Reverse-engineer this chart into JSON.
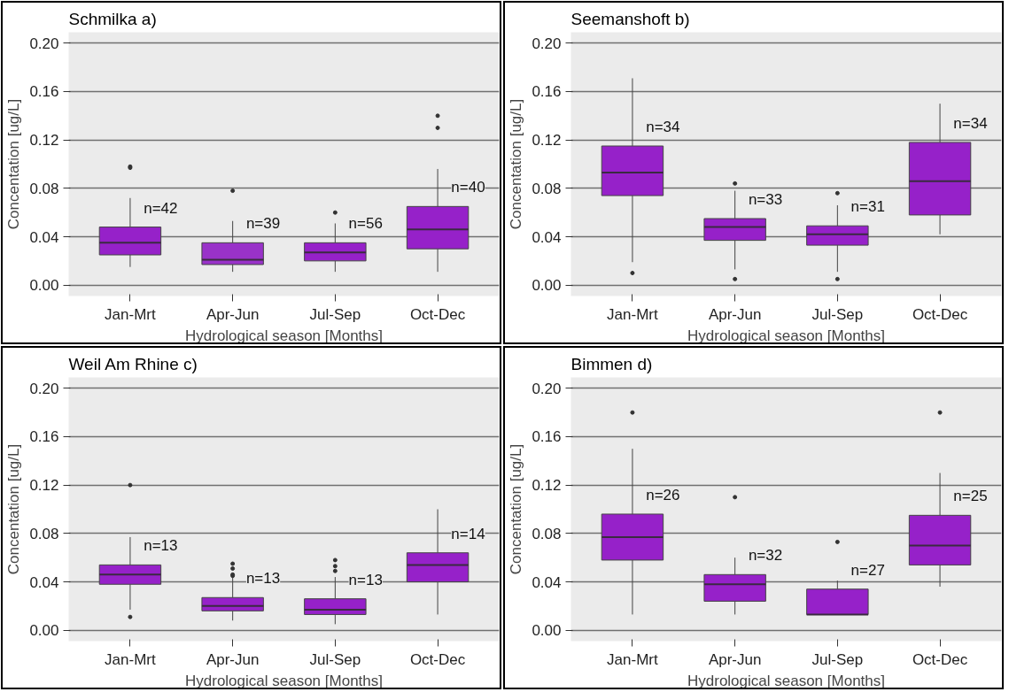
{
  "chart_data": [
    {
      "type": "box",
      "title": "Schmilka   a)",
      "xlabel": "Hydrological season [Months]",
      "ylabel": "Concentation [ug/L]",
      "categories": [
        "Jan-Mrt",
        "Apr-Jun",
        "Jul-Sep",
        "Oct-Dec"
      ],
      "colors": [
        "#9621c9",
        "#9932c9",
        "#9621c9",
        "#9621c9"
      ],
      "boxes": [
        {
          "low": 0.015,
          "q1": 0.025,
          "median": 0.035,
          "q3": 0.048,
          "high": 0.072,
          "outliers": [
            0.097,
            0.098
          ]
        },
        {
          "low": 0.011,
          "q1": 0.017,
          "median": 0.021,
          "q3": 0.035,
          "high": 0.053,
          "outliers": [
            0.078
          ]
        },
        {
          "low": 0.011,
          "q1": 0.02,
          "median": 0.027,
          "q3": 0.035,
          "high": 0.051,
          "outliers": [
            0.06
          ]
        },
        {
          "low": 0.011,
          "q1": 0.03,
          "median": 0.046,
          "q3": 0.065,
          "high": 0.096,
          "outliers": [
            0.13,
            0.14
          ]
        }
      ],
      "annotations": [
        "n=42",
        "n=39",
        "n=56",
        "n=40"
      ],
      "ylim": [
        -0.009,
        0.209
      ],
      "yticks": [
        {
          "value": 0,
          "label": "0.00"
        },
        {
          "value": 0.04,
          "label": "0.04"
        },
        {
          "value": 0.08,
          "label": "0.08"
        },
        {
          "value": 0.12,
          "label": "0.12"
        },
        {
          "value": 0.16,
          "label": "0.16"
        },
        {
          "value": 0.2,
          "label": "0.20"
        }
      ],
      "grid": "y"
    },
    {
      "type": "box",
      "title": "Seemanshoft   b)",
      "xlabel": "Hydrological season [Months]",
      "ylabel": "Concentation [ug/L]",
      "categories": [
        "Jan-Mrt",
        "Apr-Jun",
        "Jul-Sep",
        "Oct-Dec"
      ],
      "colors": [
        "#9621c9",
        "#9621c9",
        "#9621c9",
        "#9621c9"
      ],
      "boxes": [
        {
          "low": 0.019,
          "q1": 0.074,
          "median": 0.093,
          "q3": 0.115,
          "high": 0.171,
          "outliers": [
            0.01
          ]
        },
        {
          "low": 0.013,
          "q1": 0.037,
          "median": 0.048,
          "q3": 0.055,
          "high": 0.078,
          "outliers": [
            0.084,
            0.005
          ]
        },
        {
          "low": 0.011,
          "q1": 0.033,
          "median": 0.042,
          "q3": 0.049,
          "high": 0.066,
          "outliers": [
            0.076,
            0.005
          ]
        },
        {
          "low": 0.042,
          "q1": 0.058,
          "median": 0.086,
          "q3": 0.118,
          "high": 0.15
        }
      ],
      "annotations": [
        "n=34",
        "n=33",
        "n=31",
        "n=34"
      ],
      "ylim": [
        -0.009,
        0.209
      ],
      "yticks": [
        {
          "value": 0,
          "label": "0.00"
        },
        {
          "value": 0.04,
          "label": "0.04"
        },
        {
          "value": 0.08,
          "label": "0.08"
        },
        {
          "value": 0.12,
          "label": "0.12"
        },
        {
          "value": 0.16,
          "label": "0.16"
        },
        {
          "value": 0.2,
          "label": "0.20"
        }
      ],
      "grid": "y"
    },
    {
      "type": "box",
      "title": "Weil Am Rhine   c)",
      "xlabel": "Hydrological season [Months]",
      "ylabel": "Concentation [ug/L]",
      "categories": [
        "Jan-Mrt",
        "Apr-Jun",
        "Jul-Sep",
        "Oct-Dec"
      ],
      "colors": [
        "#9621c9",
        "#9621c9",
        "#9621c9",
        "#9621c9"
      ],
      "boxes": [
        {
          "low": 0.017,
          "q1": 0.038,
          "median": 0.046,
          "q3": 0.054,
          "high": 0.077,
          "outliers": [
            0.12,
            0.011
          ]
        },
        {
          "low": 0.008,
          "q1": 0.016,
          "median": 0.02,
          "q3": 0.027,
          "high": 0.044,
          "outliers": [
            0.045,
            0.046,
            0.051,
            0.055
          ]
        },
        {
          "low": 0.005,
          "q1": 0.013,
          "median": 0.017,
          "q3": 0.026,
          "high": 0.044,
          "outliers": [
            0.049,
            0.053,
            0.058
          ]
        },
        {
          "low": 0.013,
          "q1": 0.04,
          "median": 0.054,
          "q3": 0.064,
          "high": 0.1
        }
      ],
      "annotations": [
        "n=13",
        "n=13",
        "n=13",
        "n=14"
      ],
      "ylim": [
        -0.009,
        0.209
      ],
      "yticks": [
        {
          "value": 0,
          "label": "0.00"
        },
        {
          "value": 0.04,
          "label": "0.04"
        },
        {
          "value": 0.08,
          "label": "0.08"
        },
        {
          "value": 0.12,
          "label": "0.12"
        },
        {
          "value": 0.16,
          "label": "0.16"
        },
        {
          "value": 0.2,
          "label": "0.20"
        }
      ],
      "grid": "y"
    },
    {
      "type": "box",
      "title": "Bimmen   d)",
      "xlabel": "Hydrological season [Months]",
      "ylabel": "Concentation [ug/L]",
      "categories": [
        "Jan-Mrt",
        "Apr-Jun",
        "Jul-Sep",
        "Oct-Dec"
      ],
      "colors": [
        "#9621c9",
        "#9621c9",
        "#9621c9",
        "#9621c9"
      ],
      "boxes": [
        {
          "low": 0.013,
          "q1": 0.058,
          "median": 0.077,
          "q3": 0.096,
          "high": 0.15,
          "outliers": [
            0.18
          ]
        },
        {
          "low": 0.013,
          "q1": 0.024,
          "median": 0.038,
          "q3": 0.046,
          "high": 0.06,
          "outliers": [
            0.11
          ]
        },
        {
          "low": 0.013,
          "q1": 0.013,
          "median": 0.013,
          "q3": 0.034,
          "high": 0.041,
          "outliers": [
            0.073
          ]
        },
        {
          "low": 0.036,
          "q1": 0.054,
          "median": 0.07,
          "q3": 0.095,
          "high": 0.13,
          "outliers": [
            0.18
          ]
        }
      ],
      "annotations": [
        "n=26",
        "n=32",
        "n=27",
        "n=25"
      ],
      "ylim": [
        -0.009,
        0.209
      ],
      "yticks": [
        {
          "value": 0,
          "label": "0.00"
        },
        {
          "value": 0.04,
          "label": "0.04"
        },
        {
          "value": 0.08,
          "label": "0.08"
        },
        {
          "value": 0.12,
          "label": "0.12"
        },
        {
          "value": 0.16,
          "label": "0.16"
        },
        {
          "value": 0.2,
          "label": "0.20"
        }
      ],
      "grid": "y"
    }
  ]
}
